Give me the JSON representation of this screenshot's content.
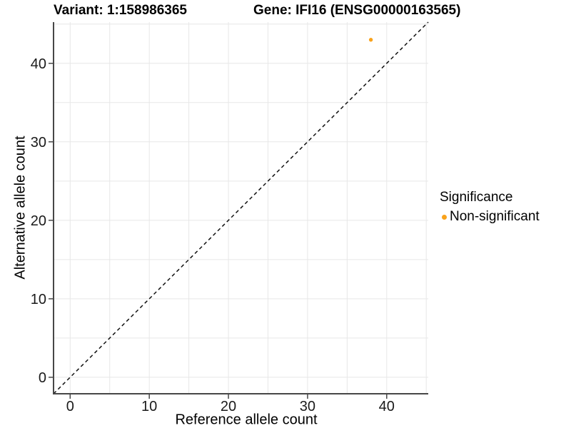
{
  "chart_data": {
    "type": "scatter",
    "title_left": "Variant: 1:158986365",
    "title_right": "Gene: IFI16 (ENSG00000163565)",
    "xlabel": "Reference allele count",
    "ylabel": "Alternative allele count",
    "xlim": [
      -2.1,
      45.25
    ],
    "ylim": [
      -2.1,
      45.25
    ],
    "xticks": [
      0,
      10,
      20,
      30,
      40
    ],
    "yticks": [
      0,
      10,
      20,
      30,
      40
    ],
    "grid": {
      "min": 0,
      "max": 45,
      "step": 5,
      "on": true,
      "color": "#e7e7e7"
    },
    "identity_line": {
      "style": "dashed",
      "color": "#111111"
    },
    "axis_color": "#474747",
    "tick_label_color": "#1a1a1a",
    "points": [
      {
        "x": 38,
        "y": 43,
        "series": "Non-significant",
        "color": "#F9A21B"
      }
    ],
    "legend": {
      "title": "Significance",
      "position": "right",
      "items": [
        {
          "label": "Non-significant",
          "color": "#F9A21B"
        }
      ]
    }
  }
}
